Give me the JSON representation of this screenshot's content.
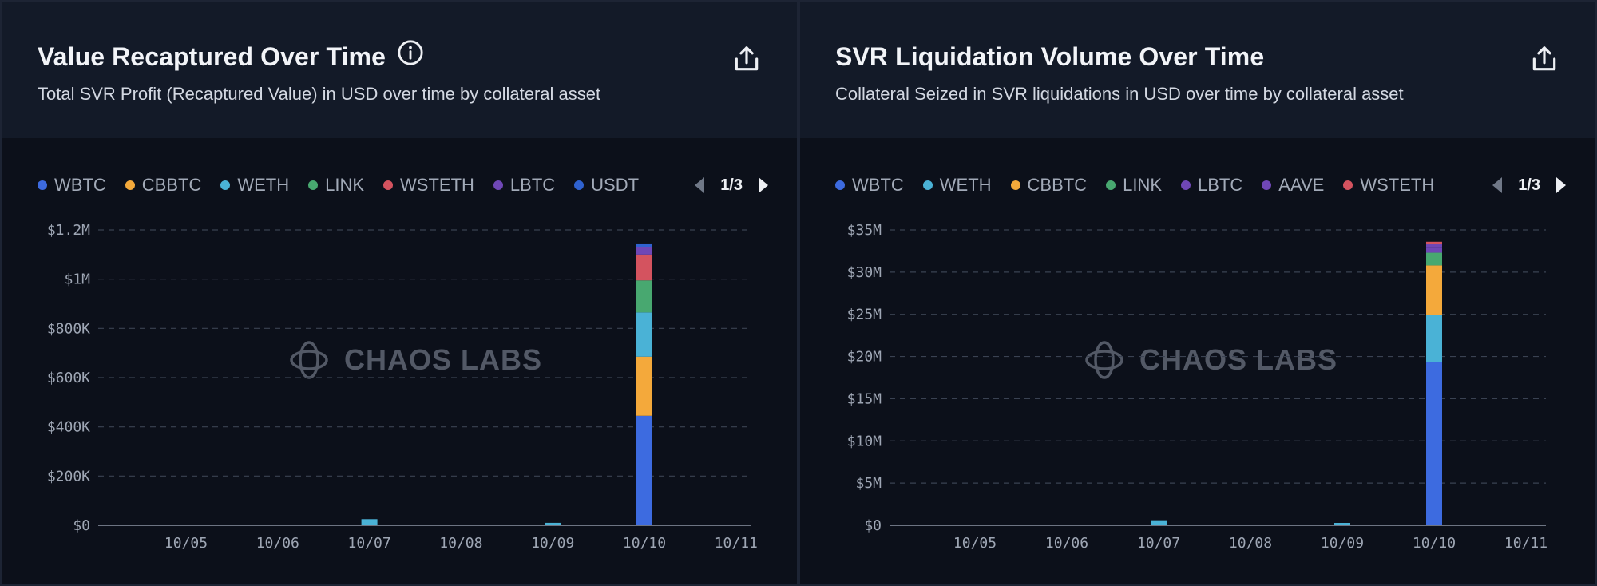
{
  "colors": {
    "WBTC": "#3d6be0",
    "CBBTC": "#f4a93b",
    "WETH": "#4ab2d6",
    "LINK": "#48a870",
    "WSTETH": "#d4535f",
    "LBTC": "#6f47b6",
    "USDT": "#2f62d0",
    "AAVE": "#6f47b6"
  },
  "watermark": "CHAOS LABS",
  "panels": [
    {
      "title": "Value Recaptured Over Time",
      "subtitle": "Total SVR Profit (Recaptured Value) in USD over time by collateral asset",
      "page": "1/3",
      "legend": [
        "WBTC",
        "CBBTC",
        "WETH",
        "LINK",
        "WSTETH",
        "LBTC",
        "USDT"
      ]
    },
    {
      "title": "SVR Liquidation Volume Over Time",
      "subtitle": "Collateral Seized in SVR liquidations in USD over time by collateral asset",
      "page": "1/3",
      "legend": [
        "WBTC",
        "WETH",
        "CBBTC",
        "LINK",
        "LBTC",
        "AAVE",
        "WSTETH"
      ]
    }
  ],
  "chart_data": [
    {
      "type": "bar",
      "stacked": true,
      "title": "Value Recaptured Over Time",
      "subtitle": "Total SVR Profit (Recaptured Value) in USD over time by collateral asset",
      "ylim": [
        0,
        1200000
      ],
      "y_ticks": [
        0,
        200000,
        400000,
        600000,
        800000,
        1000000,
        1200000
      ],
      "y_tick_labels": [
        "$0",
        "$200K",
        "$400K",
        "$600K",
        "$800K",
        "$1M",
        "$1.2M"
      ],
      "x_ticks": [
        "10/05",
        "10/06",
        "10/07",
        "10/08",
        "10/09",
        "10/10",
        "10/11"
      ],
      "grid": true,
      "bars": [
        {
          "x": "10/07",
          "segments": [
            {
              "series": "WETH",
              "value": 25000
            }
          ]
        },
        {
          "x": "10/09",
          "segments": [
            {
              "series": "WETH",
              "value": 10000
            }
          ]
        },
        {
          "x": "10/10",
          "segments": [
            {
              "series": "WBTC",
              "value": 445000
            },
            {
              "series": "CBBTC",
              "value": 240000
            },
            {
              "series": "WETH",
              "value": 180000
            },
            {
              "series": "LINK",
              "value": 130000
            },
            {
              "series": "WSTETH",
              "value": 105000
            },
            {
              "series": "LBTC",
              "value": 30000
            },
            {
              "series": "USDT",
              "value": 15000
            }
          ]
        }
      ]
    },
    {
      "type": "bar",
      "stacked": true,
      "title": "SVR Liquidation Volume Over Time",
      "subtitle": "Collateral Seized in SVR liquidations in USD over time by collateral asset",
      "ylim": [
        0,
        35000000
      ],
      "y_ticks": [
        0,
        5000000,
        10000000,
        15000000,
        20000000,
        25000000,
        30000000,
        35000000
      ],
      "y_tick_labels": [
        "$0",
        "$5M",
        "$10M",
        "$15M",
        "$20M",
        "$25M",
        "$30M",
        "$35M"
      ],
      "x_ticks": [
        "10/05",
        "10/06",
        "10/07",
        "10/08",
        "10/09",
        "10/10",
        "10/11"
      ],
      "grid": true,
      "bars": [
        {
          "x": "10/07",
          "segments": [
            {
              "series": "WETH",
              "value": 600000
            }
          ]
        },
        {
          "x": "10/09",
          "segments": [
            {
              "series": "WETH",
              "value": 250000
            }
          ]
        },
        {
          "x": "10/10",
          "segments": [
            {
              "series": "WBTC",
              "value": 19300000
            },
            {
              "series": "WETH",
              "value": 5600000
            },
            {
              "series": "CBBTC",
              "value": 5900000
            },
            {
              "series": "LINK",
              "value": 1500000
            },
            {
              "series": "LBTC",
              "value": 600000
            },
            {
              "series": "AAVE",
              "value": 400000
            },
            {
              "series": "WSTETH",
              "value": 300000
            }
          ]
        }
      ]
    }
  ]
}
